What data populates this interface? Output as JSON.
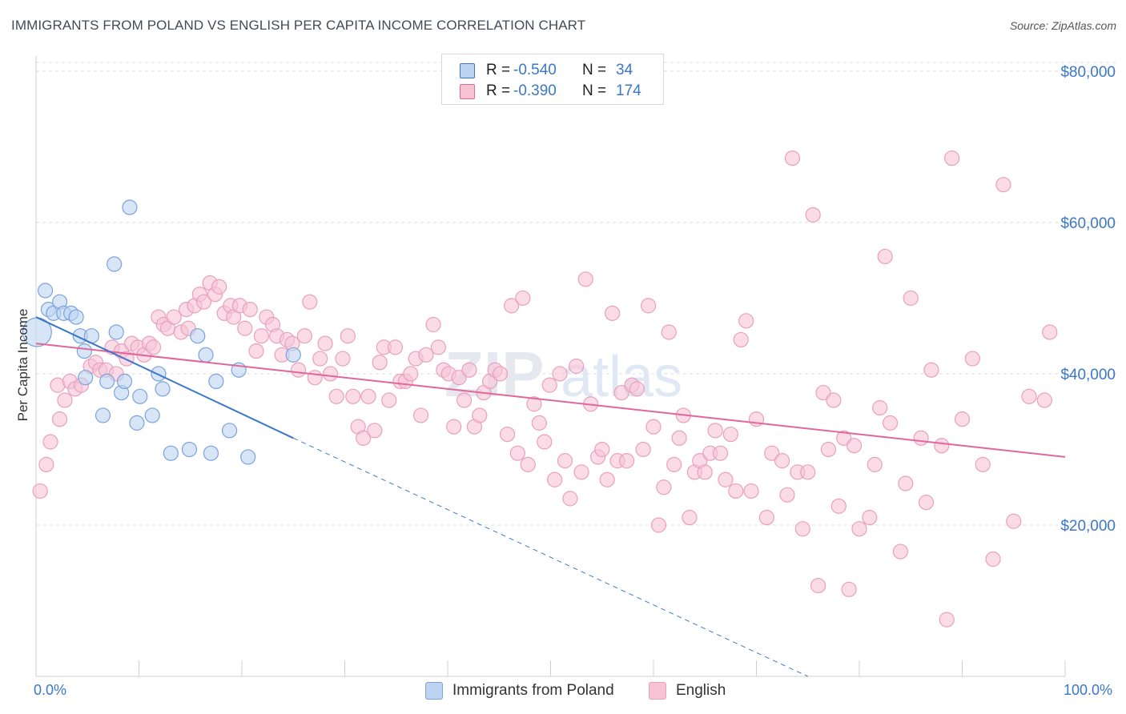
{
  "title": "IMMIGRANTS FROM POLAND VS ENGLISH PER CAPITA INCOME CORRELATION CHART",
  "source": "Source: ZipAtlas.com",
  "legend": {
    "rows": [
      {
        "r_label": "R =",
        "r_value": "-0.540",
        "n_label": "N =",
        "n_value": "34"
      },
      {
        "r_label": "R =",
        "r_value": "-0.390",
        "n_label": "N =",
        "n_value": "174"
      }
    ]
  },
  "bottom_legend": {
    "series_a": "Immigrants from Poland",
    "series_b": "English"
  },
  "axis": {
    "ylabel": "Per Capita Income",
    "x_min_label": "0.0%",
    "x_max_label": "100.0%"
  },
  "colors": {
    "blue": "#3b77c9",
    "blue_fill": "#bcd3f2",
    "pink": "#e0679a",
    "pink_fill": "#f6c3d5",
    "grid": "#dcdcdc"
  },
  "chart_data": {
    "type": "scatter",
    "title": "IMMIGRANTS FROM POLAND VS ENGLISH PER CAPITA INCOME CORRELATION CHART",
    "xlabel": "",
    "ylabel": "Per Capita Income",
    "xlim": [
      0,
      100
    ],
    "ylim": [
      0,
      82000
    ],
    "x_tick_labels": [
      "0.0%",
      "100.0%"
    ],
    "y_ticks": [
      20000,
      40000,
      60000,
      80000
    ],
    "y_tick_labels": [
      "$20,000",
      "$40,000",
      "$60,000",
      "$80,000"
    ],
    "grid": true,
    "legend_position": "top-center",
    "series": [
      {
        "name": "Immigrants from Poland",
        "color": "#3b77c9",
        "r": -0.54,
        "n": 34,
        "trend": {
          "x0": 0,
          "y0": 47500,
          "x1": 25,
          "y1": 31500,
          "dash_x1": 75,
          "dash_y1": 0
        },
        "points": [
          [
            0.1,
            45500
          ],
          [
            0.9,
            51000
          ],
          [
            1.2,
            48500
          ],
          [
            1.7,
            48000
          ],
          [
            2.3,
            49500
          ],
          [
            2.7,
            48000
          ],
          [
            3.4,
            48000
          ],
          [
            3.9,
            47500
          ],
          [
            4.3,
            45000
          ],
          [
            4.7,
            43000
          ],
          [
            5.4,
            45000
          ],
          [
            4.8,
            39500
          ],
          [
            6.5,
            34500
          ],
          [
            6.9,
            39000
          ],
          [
            7.6,
            54500
          ],
          [
            7.8,
            45500
          ],
          [
            8.3,
            37500
          ],
          [
            8.6,
            39000
          ],
          [
            9.1,
            62000
          ],
          [
            9.8,
            33500
          ],
          [
            10.1,
            37000
          ],
          [
            11.3,
            34500
          ],
          [
            11.9,
            40000
          ],
          [
            12.3,
            38000
          ],
          [
            13.1,
            29500
          ],
          [
            14.9,
            30000
          ],
          [
            15.7,
            45000
          ],
          [
            16.5,
            42500
          ],
          [
            17.0,
            29500
          ],
          [
            17.5,
            39000
          ],
          [
            18.8,
            32500
          ],
          [
            19.7,
            40500
          ],
          [
            20.6,
            29000
          ],
          [
            25.0,
            42500
          ]
        ]
      },
      {
        "name": "English",
        "color": "#e0679a",
        "r": -0.39,
        "n": 174,
        "trend": {
          "x0": 0,
          "y0": 44000,
          "x1": 100,
          "y1": 29000
        },
        "points": [
          [
            0.4,
            24500
          ],
          [
            1.0,
            28000
          ],
          [
            1.4,
            31000
          ],
          [
            2.1,
            38500
          ],
          [
            2.3,
            34000
          ],
          [
            2.8,
            36500
          ],
          [
            3.3,
            39000
          ],
          [
            3.8,
            38000
          ],
          [
            4.4,
            38500
          ],
          [
            5.3,
            41000
          ],
          [
            5.8,
            41500
          ],
          [
            6.2,
            40500
          ],
          [
            6.8,
            40500
          ],
          [
            7.4,
            43500
          ],
          [
            7.8,
            40000
          ],
          [
            8.3,
            43000
          ],
          [
            8.8,
            42000
          ],
          [
            9.3,
            44000
          ],
          [
            9.9,
            43500
          ],
          [
            10.5,
            42500
          ],
          [
            11.0,
            44000
          ],
          [
            11.4,
            43500
          ],
          [
            11.9,
            47500
          ],
          [
            12.4,
            46500
          ],
          [
            12.8,
            46000
          ],
          [
            13.4,
            47500
          ],
          [
            14.1,
            45500
          ],
          [
            14.6,
            48500
          ],
          [
            14.8,
            46000
          ],
          [
            15.4,
            49000
          ],
          [
            15.9,
            50500
          ],
          [
            16.3,
            49500
          ],
          [
            16.9,
            52000
          ],
          [
            17.4,
            50500
          ],
          [
            17.8,
            51500
          ],
          [
            18.3,
            48000
          ],
          [
            18.9,
            49000
          ],
          [
            19.2,
            47500
          ],
          [
            19.8,
            49000
          ],
          [
            20.3,
            46000
          ],
          [
            20.8,
            48500
          ],
          [
            21.4,
            43000
          ],
          [
            21.9,
            45000
          ],
          [
            22.4,
            47500
          ],
          [
            23.0,
            46500
          ],
          [
            23.4,
            45000
          ],
          [
            23.9,
            42500
          ],
          [
            24.4,
            44500
          ],
          [
            24.9,
            44000
          ],
          [
            25.5,
            40500
          ],
          [
            26.1,
            45000
          ],
          [
            26.6,
            49500
          ],
          [
            27.1,
            39500
          ],
          [
            27.6,
            42000
          ],
          [
            28.1,
            44000
          ],
          [
            28.6,
            40000
          ],
          [
            29.2,
            37000
          ],
          [
            29.8,
            42000
          ],
          [
            30.3,
            45000
          ],
          [
            30.8,
            37000
          ],
          [
            31.3,
            33000
          ],
          [
            31.8,
            31500
          ],
          [
            32.3,
            37000
          ],
          [
            32.9,
            32500
          ],
          [
            33.4,
            41500
          ],
          [
            33.8,
            43500
          ],
          [
            34.3,
            36500
          ],
          [
            34.9,
            43500
          ],
          [
            35.4,
            39000
          ],
          [
            35.9,
            39000
          ],
          [
            36.4,
            40000
          ],
          [
            36.9,
            42000
          ],
          [
            37.4,
            34500
          ],
          [
            37.9,
            42500
          ],
          [
            38.6,
            46500
          ],
          [
            39.1,
            43500
          ],
          [
            39.6,
            40500
          ],
          [
            40.1,
            40000
          ],
          [
            40.6,
            33000
          ],
          [
            41.1,
            39500
          ],
          [
            41.6,
            36500
          ],
          [
            42.1,
            40500
          ],
          [
            42.6,
            33000
          ],
          [
            43.1,
            34500
          ],
          [
            43.5,
            37500
          ],
          [
            44.1,
            39000
          ],
          [
            44.6,
            40500
          ],
          [
            45.1,
            40000
          ],
          [
            45.8,
            32000
          ],
          [
            46.2,
            49000
          ],
          [
            46.8,
            29500
          ],
          [
            47.3,
            50000
          ],
          [
            47.8,
            28000
          ],
          [
            48.4,
            36000
          ],
          [
            48.9,
            33500
          ],
          [
            49.4,
            31000
          ],
          [
            49.9,
            38500
          ],
          [
            50.4,
            26000
          ],
          [
            50.9,
            40000
          ],
          [
            51.4,
            28500
          ],
          [
            51.9,
            23500
          ],
          [
            52.5,
            41000
          ],
          [
            53.0,
            27000
          ],
          [
            53.4,
            52500
          ],
          [
            53.9,
            36000
          ],
          [
            54.6,
            29000
          ],
          [
            55.0,
            30000
          ],
          [
            55.5,
            26000
          ],
          [
            56.0,
            48000
          ],
          [
            56.5,
            28500
          ],
          [
            56.9,
            37500
          ],
          [
            57.4,
            28500
          ],
          [
            57.9,
            38500
          ],
          [
            58.4,
            38000
          ],
          [
            59.0,
            30000
          ],
          [
            59.5,
            49000
          ],
          [
            60.0,
            33000
          ],
          [
            60.5,
            20000
          ],
          [
            61.0,
            25000
          ],
          [
            61.5,
            45500
          ],
          [
            62.0,
            28000
          ],
          [
            62.5,
            31500
          ],
          [
            62.9,
            34500
          ],
          [
            63.5,
            21000
          ],
          [
            64.0,
            27000
          ],
          [
            64.5,
            28500
          ],
          [
            65.0,
            27000
          ],
          [
            65.5,
            29500
          ],
          [
            66.0,
            32500
          ],
          [
            66.5,
            29500
          ],
          [
            67.0,
            26000
          ],
          [
            67.5,
            32000
          ],
          [
            68.0,
            24500
          ],
          [
            68.5,
            44500
          ],
          [
            69.0,
            47000
          ],
          [
            69.5,
            24500
          ],
          [
            70.0,
            34000
          ],
          [
            71.0,
            21000
          ],
          [
            71.5,
            29500
          ],
          [
            72.5,
            28500
          ],
          [
            73.0,
            24000
          ],
          [
            73.5,
            68500
          ],
          [
            74.0,
            27000
          ],
          [
            74.5,
            19500
          ],
          [
            75.0,
            27000
          ],
          [
            75.5,
            61000
          ],
          [
            76.0,
            12000
          ],
          [
            76.5,
            37500
          ],
          [
            77.0,
            30000
          ],
          [
            77.5,
            36500
          ],
          [
            78.0,
            22500
          ],
          [
            78.5,
            31500
          ],
          [
            79.0,
            11500
          ],
          [
            79.5,
            30500
          ],
          [
            80.0,
            19500
          ],
          [
            81.0,
            21000
          ],
          [
            81.5,
            28000
          ],
          [
            82.0,
            35500
          ],
          [
            82.5,
            55500
          ],
          [
            83.0,
            33500
          ],
          [
            84.0,
            16500
          ],
          [
            84.5,
            25500
          ],
          [
            85.0,
            50000
          ],
          [
            86.0,
            31500
          ],
          [
            86.5,
            23000
          ],
          [
            87.0,
            40500
          ],
          [
            88.0,
            30500
          ],
          [
            88.5,
            7500
          ],
          [
            89.0,
            68500
          ],
          [
            90.0,
            34000
          ],
          [
            91.0,
            42000
          ],
          [
            92.0,
            28000
          ],
          [
            93.0,
            15500
          ],
          [
            94.0,
            65000
          ],
          [
            95.0,
            20500
          ],
          [
            96.5,
            37000
          ],
          [
            98.0,
            36500
          ],
          [
            98.5,
            45500
          ]
        ]
      }
    ]
  }
}
